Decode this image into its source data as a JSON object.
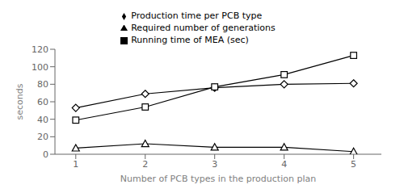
{
  "chart_data": {
    "type": "line",
    "x": [
      1,
      2,
      3,
      4,
      5
    ],
    "xlabel": "Number of PCB types in the production plan",
    "ylabel": "seconds",
    "xlim": [
      0.7,
      5.4
    ],
    "ylim": [
      0,
      120
    ],
    "xticks": [
      1,
      2,
      3,
      4,
      5
    ],
    "yticks": [
      0,
      20,
      40,
      60,
      80,
      100,
      120
    ],
    "grid": false,
    "legend": "top",
    "series": [
      {
        "name": "Production time per PCB type",
        "color": "#000000",
        "marker": "diamond",
        "values": [
          53,
          69,
          76,
          80,
          81
        ]
      },
      {
        "name": "Running time of MEA (sec)",
        "color": "#000000",
        "marker": "square",
        "values": [
          39,
          54,
          77,
          91,
          113
        ]
      },
      {
        "name": "Required number of generations",
        "color": "#000000",
        "marker": "triangle",
        "values": [
          7,
          12,
          8,
          8,
          3
        ]
      }
    ]
  }
}
